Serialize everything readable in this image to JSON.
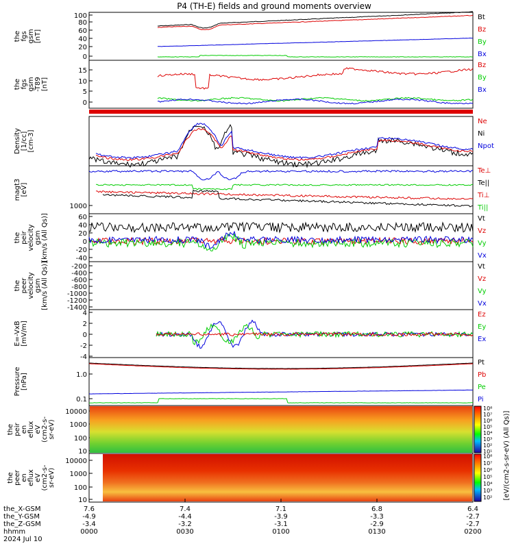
{
  "title": "P4 (TH-E) fields and ground moments overview",
  "colors": {
    "black": "#000000",
    "red": "#dd0000",
    "green": "#00cc00",
    "blue": "#0000dd"
  },
  "panels": [
    {
      "id": "fgs-gsm",
      "ylabel": [
        "the",
        "fgs",
        "gsm",
        "[nT]"
      ],
      "ticks": [
        "100",
        "80",
        "60",
        "40",
        "20",
        "0"
      ],
      "legend": [
        {
          "label": "Bt",
          "color": "black"
        },
        {
          "label": "Bz",
          "color": "red"
        },
        {
          "label": "By",
          "color": "green"
        },
        {
          "label": "Bx",
          "color": "blue"
        }
      ]
    },
    {
      "id": "fgs-t89",
      "ylabel": [
        "the",
        "fgs",
        "gsm",
        "-T89",
        "[nT]"
      ],
      "ticks": [
        "15",
        "10",
        "5",
        "0"
      ],
      "legend": [
        {
          "label": "Bz",
          "color": "red"
        },
        {
          "label": "By",
          "color": "green"
        },
        {
          "label": "Bx",
          "color": "blue"
        }
      ]
    },
    {
      "id": "density",
      "ylabel": [
        "Density",
        "[1/cc]",
        "[cm-3]"
      ],
      "ticks": [],
      "legend": [
        {
          "label": "Ne",
          "color": "red"
        },
        {
          "label": "Ni",
          "color": "black"
        },
        {
          "label": "Npot",
          "color": "blue"
        }
      ]
    },
    {
      "id": "temperature",
      "ylabel": [
        "magt3",
        "[eV]"
      ],
      "ticks": [
        "1000"
      ],
      "legend": [
        {
          "label": "Te⊥",
          "color": "red"
        },
        {
          "label": "Te||",
          "color": "black"
        },
        {
          "label": "Ti⊥",
          "color": "red"
        },
        {
          "label": "Ti||",
          "color": "green"
        }
      ]
    },
    {
      "id": "peir-velocity",
      "ylabel": [
        "the",
        "peir",
        "velocity",
        "gsm",
        "[km/s (All Qs)]"
      ],
      "ticks": [
        "60",
        "40",
        "20",
        "0",
        "-20",
        "-40"
      ],
      "legend": [
        {
          "label": "Vt",
          "color": "black"
        },
        {
          "label": "Vz",
          "color": "red"
        },
        {
          "label": "Vy",
          "color": "green"
        },
        {
          "label": "Vx",
          "color": "blue"
        }
      ]
    },
    {
      "id": "peer-velocity",
      "ylabel": [
        "the",
        "peer",
        "velocity",
        "gsm",
        "[km/s (All Qs)]"
      ],
      "ticks": [
        "-200",
        "-400",
        "-600",
        "-800",
        "-1000",
        "-1200",
        "-1400"
      ],
      "legend": [
        {
          "label": "Vt",
          "color": "black"
        },
        {
          "label": "Vz",
          "color": "red"
        },
        {
          "label": "Vy",
          "color": "green"
        },
        {
          "label": "Vx",
          "color": "blue"
        }
      ]
    },
    {
      "id": "efield",
      "ylabel": [
        "E=-VxB",
        "[mV/m]"
      ],
      "ticks": [
        "4",
        "2",
        "0",
        "-2",
        "-4"
      ],
      "legend": [
        {
          "label": "Ez",
          "color": "red"
        },
        {
          "label": "Ey",
          "color": "green"
        },
        {
          "label": "Ex",
          "color": "blue"
        }
      ]
    },
    {
      "id": "pressure",
      "ylabel": [
        "Pressure",
        "[nPa]"
      ],
      "ticks": [
        "1.0",
        "0.1"
      ],
      "legend": [
        {
          "label": "Pt",
          "color": "black"
        },
        {
          "label": "Pb",
          "color": "red"
        },
        {
          "label": "Pe",
          "color": "green"
        },
        {
          "label": "Pi",
          "color": "blue"
        }
      ]
    },
    {
      "id": "peir-spec",
      "ylabel": [
        "the",
        "peir",
        "en",
        "eflux",
        "eV",
        "(cm2-s-",
        "sr-eV)"
      ],
      "ticks": [
        "10000",
        "1000",
        "100",
        "10"
      ],
      "legend": []
    },
    {
      "id": "peer-spec",
      "ylabel": [
        "the",
        "peer",
        "en",
        "eflux",
        "eV",
        "(cm2-s-",
        "sr-eV)"
      ],
      "ticks": [
        "10000",
        "1000",
        "100",
        "10"
      ],
      "legend": []
    }
  ],
  "colorbar": {
    "top_ticks": [
      "10⁸",
      "10⁷",
      "10⁶",
      "10⁵",
      "10⁴",
      "10³",
      "10²",
      "10¹"
    ],
    "bottom_ticks": [
      "10⁸",
      "10⁷",
      "10⁶",
      "10⁵",
      "10⁴",
      "10³",
      "10²"
    ],
    "label": "[eV/(cm2-s-sr-eV) (All Qs)]"
  },
  "xaxis": {
    "row_labels": [
      "the_X-GSM",
      "the_Y-GSM",
      "the_Z-GSM",
      "hhmm",
      "2024 Jul 10"
    ],
    "columns": [
      [
        "7.6",
        "-4.9",
        "-3.4",
        "0000"
      ],
      [
        "7.4",
        "-4.4",
        "-3.2",
        "0030"
      ],
      [
        "7.1",
        "-3.9",
        "-3.1",
        "0100"
      ],
      [
        "6.8",
        "-3.3",
        "-2.9",
        "0130"
      ],
      [
        "6.4",
        "-2.7",
        "-2.7",
        "0200"
      ]
    ]
  },
  "chart_data": {
    "type": "line",
    "title": "P4 (TH-E) fields and ground moments overview",
    "x_axis": "hhmm",
    "x": [
      "0000",
      "0030",
      "0100",
      "0130",
      "0200"
    ],
    "series": [
      {
        "name": "Bt",
        "values": [
          null,
          67,
          70,
          83,
          100
        ]
      },
      {
        "name": "Bz",
        "values": [
          null,
          65,
          68,
          78,
          95
        ]
      },
      {
        "name": "By",
        "values": [
          null,
          22,
          28,
          35,
          42
        ]
      },
      {
        "name": "Bx",
        "values": [
          null,
          2,
          0,
          -1,
          -2
        ]
      },
      {
        "name": "Pt",
        "values": [
          1.5,
          1.3,
          1.4,
          1.8,
          2.3
        ]
      },
      {
        "name": "Pe",
        "values": [
          0.18,
          0.2,
          0.21,
          0.22,
          0.23
        ]
      }
    ]
  }
}
